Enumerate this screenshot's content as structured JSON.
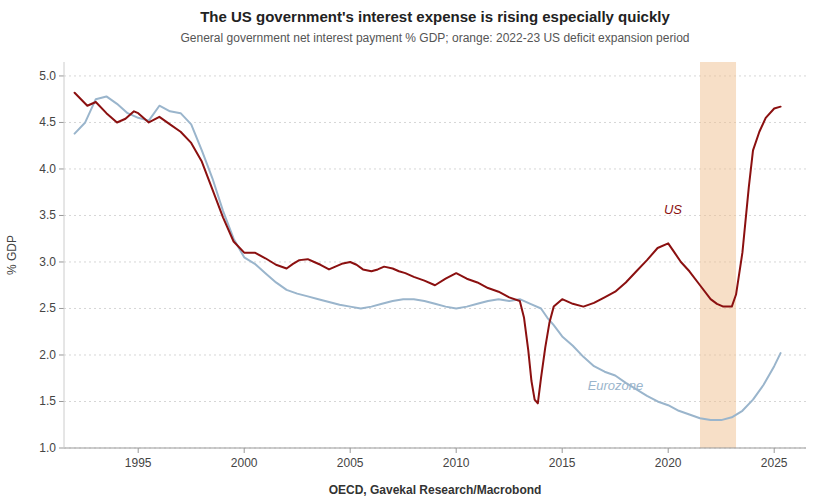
{
  "chart_data": {
    "type": "line",
    "title": "The US government's interest expense is rising especially quickly",
    "subtitle": "General government net interest payment % GDP; orange: 2022-23 US deficit expansion period",
    "source": "OECD, Gavekal Research/Macrobond",
    "ylabel": "% GDP",
    "xlim": [
      1991.5,
      2026.5
    ],
    "ylim": [
      1.0,
      5.15
    ],
    "xticks": [
      1995,
      2000,
      2005,
      2010,
      2015,
      2020,
      2025
    ],
    "yticks": [
      {
        "value": 1.0,
        "label": "1.0"
      },
      {
        "value": 1.5,
        "label": "1.5"
      },
      {
        "value": 2.0,
        "label": "2.0"
      },
      {
        "value": 2.5,
        "label": "2.5"
      },
      {
        "value": 3.0,
        "label": "3.0"
      },
      {
        "value": 3.5,
        "label": "3.5"
      },
      {
        "value": 4.0,
        "label": "4.0"
      },
      {
        "value": 4.5,
        "label": "4.5"
      },
      {
        "value": 5.0,
        "label": "5.0"
      }
    ],
    "grid": true,
    "shaded_ranges": [
      {
        "xmin": 2021.5,
        "xmax": 2023.2,
        "color": "#f0c090"
      }
    ],
    "annotations": [
      {
        "text": "US",
        "x": 2019.8,
        "y": 3.52,
        "color": "#8b1010"
      },
      {
        "text": "Eurozone",
        "x": 2016.2,
        "y": 1.62,
        "color": "#9ab5cc"
      }
    ],
    "series": [
      {
        "color": "#9ab5cc",
        "x": [
          1992.0,
          1992.5,
          1993.0,
          1993.5,
          1994.0,
          1994.5,
          1995.0,
          1995.5,
          1996.0,
          1996.5,
          1997.0,
          1997.5,
          1998.0,
          1998.5,
          1999.0,
          1999.5,
          2000.0,
          2000.5,
          2001.0,
          2001.5,
          2002.0,
          2002.5,
          2003.0,
          2003.5,
          2004.0,
          2004.5,
          2005.0,
          2005.5,
          2006.0,
          2006.5,
          2007.0,
          2007.5,
          2008.0,
          2008.5,
          2009.0,
          2009.5,
          2010.0,
          2010.5,
          2011.0,
          2011.5,
          2012.0,
          2012.5,
          2013.0,
          2013.5,
          2014.0,
          2014.3,
          2014.6,
          2015.0,
          2015.5,
          2016.0,
          2016.5,
          2017.0,
          2017.5,
          2018.0,
          2018.5,
          2019.0,
          2019.5,
          2020.0,
          2020.5,
          2021.0,
          2021.5,
          2022.0,
          2022.5,
          2023.0,
          2023.5,
          2024.0,
          2024.5,
          2025.0,
          2025.3
        ],
        "values": [
          4.38,
          4.5,
          4.75,
          4.78,
          4.7,
          4.6,
          4.55,
          4.52,
          4.68,
          4.62,
          4.6,
          4.48,
          4.2,
          3.9,
          3.55,
          3.25,
          3.05,
          2.98,
          2.88,
          2.78,
          2.7,
          2.66,
          2.63,
          2.6,
          2.57,
          2.54,
          2.52,
          2.5,
          2.52,
          2.55,
          2.58,
          2.6,
          2.6,
          2.58,
          2.55,
          2.52,
          2.5,
          2.52,
          2.55,
          2.58,
          2.6,
          2.58,
          2.6,
          2.55,
          2.5,
          2.4,
          2.32,
          2.2,
          2.1,
          1.98,
          1.88,
          1.82,
          1.78,
          1.7,
          1.63,
          1.56,
          1.5,
          1.46,
          1.4,
          1.36,
          1.32,
          1.3,
          1.3,
          1.33,
          1.4,
          1.52,
          1.68,
          1.88,
          2.02
        ]
      },
      {
        "color": "#8b1010",
        "x": [
          1992.0,
          1992.3,
          1992.6,
          1993.0,
          1993.5,
          1994.0,
          1994.4,
          1994.8,
          1995.0,
          1995.5,
          1996.0,
          1996.5,
          1997.0,
          1997.5,
          1998.0,
          1998.5,
          1999.0,
          1999.5,
          2000.0,
          2000.5,
          2001.0,
          2001.5,
          2002.0,
          2002.3,
          2002.6,
          2003.0,
          2003.3,
          2003.6,
          2004.0,
          2004.3,
          2004.6,
          2005.0,
          2005.3,
          2005.6,
          2006.0,
          2006.3,
          2006.6,
          2007.0,
          2007.3,
          2007.6,
          2008.0,
          2008.5,
          2009.0,
          2009.5,
          2010.0,
          2010.5,
          2011.0,
          2011.5,
          2012.0,
          2012.5,
          2013.0,
          2013.2,
          2013.4,
          2013.55,
          2013.7,
          2013.85,
          2014.0,
          2014.2,
          2014.4,
          2014.6,
          2015.0,
          2015.5,
          2016.0,
          2016.5,
          2017.0,
          2017.5,
          2018.0,
          2018.5,
          2019.0,
          2019.5,
          2020.0,
          2020.3,
          2020.6,
          2021.0,
          2021.5,
          2022.0,
          2022.3,
          2022.6,
          2023.0,
          2023.2,
          2023.5,
          2023.8,
          2024.0,
          2024.3,
          2024.6,
          2025.0,
          2025.3
        ],
        "values": [
          4.82,
          4.75,
          4.68,
          4.72,
          4.6,
          4.5,
          4.54,
          4.62,
          4.6,
          4.5,
          4.56,
          4.48,
          4.4,
          4.28,
          4.08,
          3.78,
          3.48,
          3.22,
          3.1,
          3.1,
          3.04,
          2.97,
          2.93,
          2.98,
          3.02,
          3.03,
          3.0,
          2.97,
          2.92,
          2.95,
          2.98,
          3.0,
          2.97,
          2.92,
          2.9,
          2.92,
          2.95,
          2.93,
          2.9,
          2.88,
          2.84,
          2.8,
          2.75,
          2.82,
          2.88,
          2.82,
          2.78,
          2.72,
          2.68,
          2.62,
          2.58,
          2.4,
          2.05,
          1.72,
          1.52,
          1.48,
          1.75,
          2.08,
          2.35,
          2.52,
          2.6,
          2.55,
          2.52,
          2.56,
          2.62,
          2.68,
          2.78,
          2.9,
          3.02,
          3.15,
          3.2,
          3.1,
          3.0,
          2.9,
          2.75,
          2.6,
          2.55,
          2.52,
          2.52,
          2.65,
          3.1,
          3.8,
          4.2,
          4.4,
          4.55,
          4.65,
          4.67
        ]
      }
    ]
  }
}
